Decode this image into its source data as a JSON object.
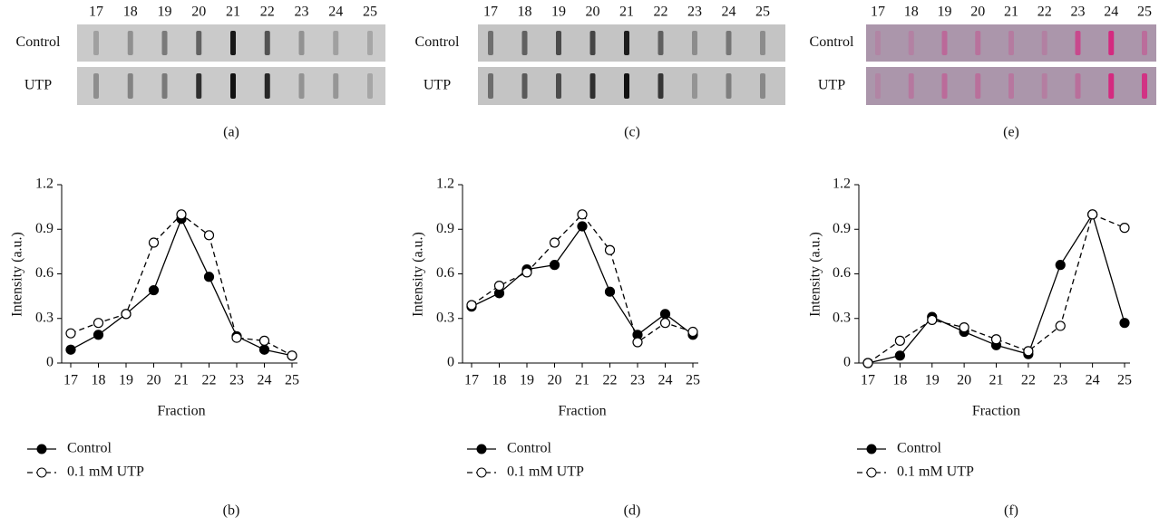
{
  "blots": [
    {
      "label": "(a)",
      "lanes": [
        "17",
        "18",
        "19",
        "20",
        "21",
        "22",
        "23",
        "24",
        "25"
      ],
      "rows": [
        "Control",
        "UTP"
      ],
      "background": "#cacaca",
      "band_color": "#111111"
    },
    {
      "label": "(c)",
      "lanes": [
        "17",
        "18",
        "19",
        "20",
        "21",
        "22",
        "23",
        "24",
        "25"
      ],
      "rows": [
        "Control",
        "UTP"
      ],
      "background": "#c4c4c4",
      "band_color": "#111111"
    },
    {
      "label": "(e)",
      "lanes": [
        "17",
        "18",
        "19",
        "20",
        "21",
        "22",
        "23",
        "24",
        "25"
      ],
      "rows": [
        "Control",
        "UTP"
      ],
      "background": "#ab96ab",
      "band_color": "#d42a80"
    }
  ],
  "chart_data": [
    {
      "type": "line",
      "label": "(b)",
      "x_label": "Fraction",
      "y_label": "Intensity (a.u.)",
      "categories": [
        "17",
        "18",
        "19",
        "20",
        "21",
        "22",
        "23",
        "24",
        "25"
      ],
      "ylim": [
        0,
        1.2
      ],
      "yticks": [
        0,
        0.3,
        0.6,
        0.9,
        1.2
      ],
      "series": [
        {
          "name": "Control",
          "color": "#000000",
          "marker": "filled",
          "dashed": false,
          "values": [
            0.09,
            0.19,
            0.33,
            0.49,
            0.97,
            0.58,
            0.18,
            0.09,
            0.05
          ]
        },
        {
          "name": "0.1 mM UTP",
          "color": "#000000",
          "marker": "open",
          "dashed": true,
          "values": [
            0.2,
            0.27,
            0.33,
            0.81,
            1.0,
            0.86,
            0.17,
            0.15,
            0.05
          ]
        }
      ]
    },
    {
      "type": "line",
      "label": "(d)",
      "x_label": "Fraction",
      "y_label": "Intensity (a.u.)",
      "categories": [
        "17",
        "18",
        "19",
        "20",
        "21",
        "22",
        "23",
        "24",
        "25"
      ],
      "ylim": [
        0,
        1.2
      ],
      "yticks": [
        0,
        0.3,
        0.6,
        0.9,
        1.2
      ],
      "series": [
        {
          "name": "Control",
          "color": "#000000",
          "marker": "filled",
          "dashed": false,
          "values": [
            0.38,
            0.47,
            0.63,
            0.66,
            0.92,
            0.48,
            0.19,
            0.33,
            0.19
          ]
        },
        {
          "name": "0.1 mM UTP",
          "color": "#000000",
          "marker": "open",
          "dashed": true,
          "values": [
            0.39,
            0.52,
            0.61,
            0.81,
            1.0,
            0.76,
            0.14,
            0.27,
            0.21
          ]
        }
      ]
    },
    {
      "type": "line",
      "label": "(f)",
      "x_label": "Fraction",
      "y_label": "Intensity (a.u.)",
      "categories": [
        "17",
        "18",
        "19",
        "20",
        "21",
        "22",
        "23",
        "24",
        "25"
      ],
      "ylim": [
        0,
        1.2
      ],
      "yticks": [
        0,
        0.3,
        0.6,
        0.9,
        1.2
      ],
      "series": [
        {
          "name": "Control",
          "color": "#000000",
          "marker": "filled",
          "dashed": false,
          "values": [
            0.0,
            0.05,
            0.31,
            0.21,
            0.12,
            0.06,
            0.66,
            1.0,
            0.27
          ]
        },
        {
          "name": "0.1 mM UTP",
          "color": "#000000",
          "marker": "open",
          "dashed": true,
          "values": [
            0.0,
            0.15,
            0.29,
            0.24,
            0.16,
            0.08,
            0.25,
            1.0,
            0.91
          ]
        }
      ]
    }
  ]
}
